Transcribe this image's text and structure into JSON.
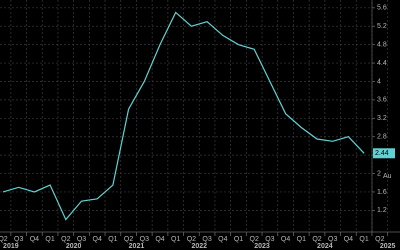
{
  "chart_data": {
    "type": "line",
    "categories": [
      "Q2",
      "Q3",
      "Q4",
      "Q1",
      "Q2",
      "Q3",
      "Q4",
      "Q1",
      "Q2",
      "Q3",
      "Q4",
      "Q1",
      "Q2",
      "Q3",
      "Q4",
      "Q1",
      "Q2",
      "Q3",
      "Q4",
      "Q1",
      "Q2",
      "Q3",
      "Q4",
      "Q1",
      "Q2"
    ],
    "year_labels": [
      "2019",
      "2020",
      "2021",
      "2022",
      "2023",
      "2024",
      "2025"
    ],
    "series": [
      {
        "name": null,
        "color": "#5fd3d3",
        "values": [
          1.6,
          1.7,
          1.6,
          1.75,
          1.0,
          1.4,
          1.45,
          1.75,
          3.4,
          4.0,
          4.8,
          5.5,
          5.2,
          5.3,
          5.0,
          4.8,
          4.7,
          4.0,
          3.3,
          3.0,
          2.75,
          2.7,
          2.8,
          2.44,
          null
        ]
      }
    ],
    "ylim": [
      0.73,
      5.77
    ],
    "yticks": [
      1.2,
      1.6,
      2,
      2.4,
      2.8,
      3.2,
      3.6,
      4,
      4.4,
      4.8,
      5.2,
      5.6
    ],
    "annotations": [
      "Au"
    ],
    "grid": true
  }
}
